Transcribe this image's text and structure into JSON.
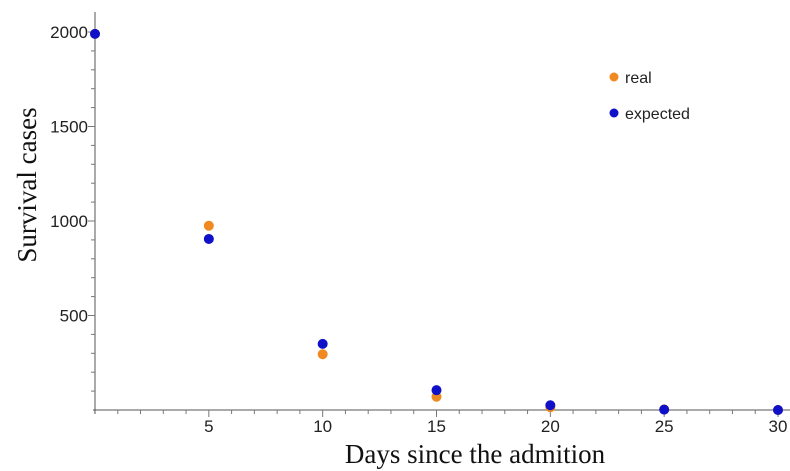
{
  "chart_data": {
    "type": "scatter",
    "title": "",
    "xlabel": "Days since the admition",
    "ylabel": "Survival cases",
    "xlim": [
      0,
      30
    ],
    "ylim": [
      0,
      2000
    ],
    "xticks": [
      5,
      10,
      15,
      20,
      25,
      30
    ],
    "yticks": [
      500,
      1000,
      1500,
      2000
    ],
    "grid": false,
    "legend": "top-right",
    "series": [
      {
        "name": "real",
        "color": "#f0891f",
        "points": [
          {
            "x": 0,
            "y": 1990
          },
          {
            "x": 5,
            "y": 975
          },
          {
            "x": 10,
            "y": 295
          },
          {
            "x": 15,
            "y": 70
          },
          {
            "x": 20,
            "y": 15
          },
          {
            "x": 25,
            "y": 3
          },
          {
            "x": 30,
            "y": 0
          }
        ]
      },
      {
        "name": "expected",
        "color": "#1010c8",
        "points": [
          {
            "x": 0,
            "y": 1990
          },
          {
            "x": 5,
            "y": 905
          },
          {
            "x": 10,
            "y": 350
          },
          {
            "x": 15,
            "y": 105
          },
          {
            "x": 20,
            "y": 25
          },
          {
            "x": 25,
            "y": 2
          },
          {
            "x": 30,
            "y": 0
          }
        ]
      }
    ]
  }
}
